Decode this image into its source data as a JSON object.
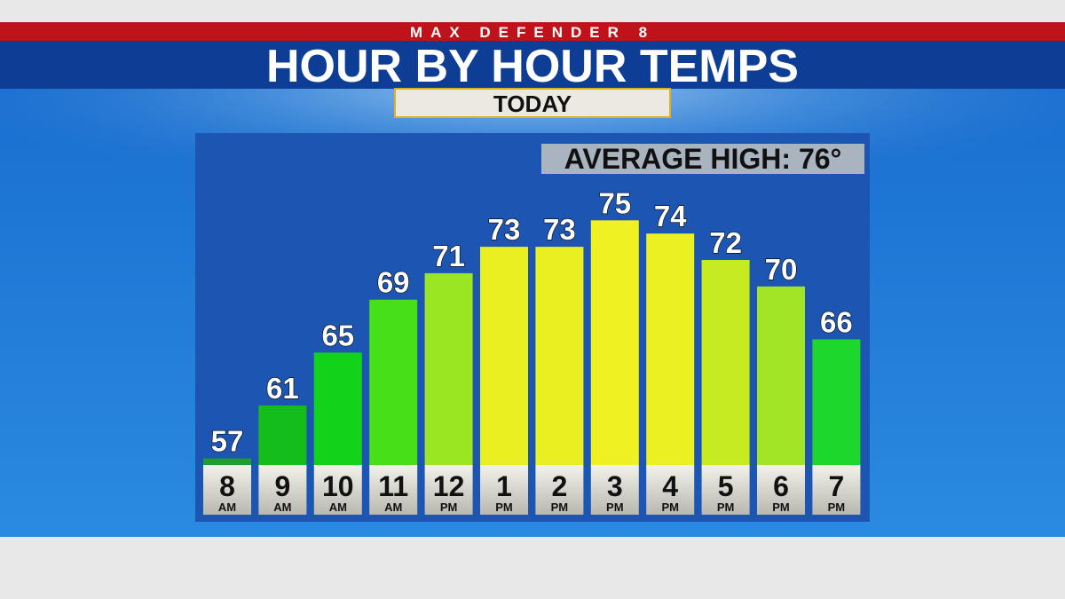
{
  "chart_data": {
    "type": "bar",
    "brand": "MAX DEFENDER 8",
    "title": "HOUR BY HOUR TEMPS",
    "subtitle": "TODAY",
    "annotation": "AVERAGE HIGH: 76°",
    "categories": [
      "8",
      "9",
      "10",
      "11",
      "12",
      "1",
      "2",
      "3",
      "4",
      "5",
      "6",
      "7"
    ],
    "category_periods": [
      "AM",
      "AM",
      "AM",
      "AM",
      "PM",
      "PM",
      "PM",
      "PM",
      "PM",
      "PM",
      "PM",
      "PM"
    ],
    "values": [
      57,
      61,
      65,
      69,
      71,
      73,
      73,
      75,
      74,
      72,
      70,
      66
    ],
    "colors": [
      "#1f9e2c",
      "#14bd1c",
      "#12d31a",
      "#47df18",
      "#9be622",
      "#e9f021",
      "#e9f021",
      "#eff122",
      "#eaf021",
      "#c6eb20",
      "#a2e526",
      "#1ed72c"
    ],
    "ylim": [
      56.5,
      77
    ]
  }
}
